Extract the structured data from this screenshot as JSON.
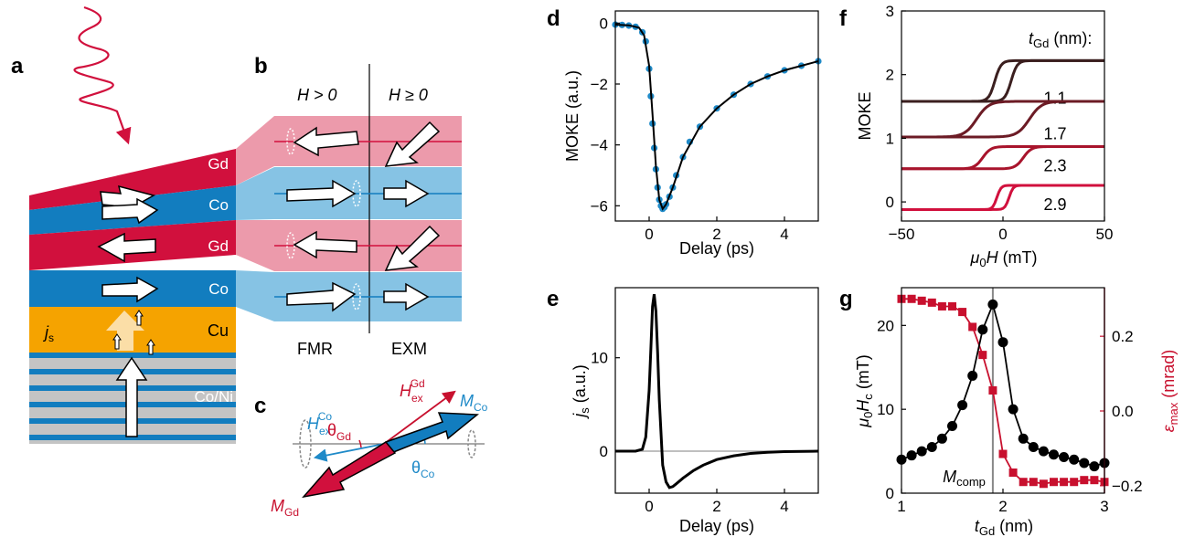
{
  "panels": {
    "a": "a",
    "b": "b",
    "c": "c",
    "d": "d",
    "e": "e",
    "f": "f",
    "g": "g"
  },
  "colors": {
    "gd": "#d1103d",
    "co": "#127dbf",
    "cu": "#f5a300",
    "gd_light": "#ec9aab",
    "co_light": "#86c3e4",
    "gray": "#c4c4c4",
    "blue": "#1f8ac8",
    "crimson": "#c8102e",
    "tick_h_hi": "#3b1f1f",
    "tick_h_mid": "#6c1b25"
  },
  "panel_a": {
    "layers": [
      "Gd",
      "Co",
      "Gd",
      "Co",
      "Cu",
      "Co/Ni"
    ],
    "js_main": "j",
    "js_sub": "s"
  },
  "panel_b": {
    "left_header": "H > 0",
    "right_header": "H ≥ 0",
    "left_footer": "FMR",
    "right_footer": "EXM"
  },
  "panel_c": {
    "hex_gd_main": "H",
    "hex_gd_sub": "ex",
    "hex_gd_sup": "Gd",
    "hex_co_main": "H",
    "hex_co_sub": "ex",
    "hex_co_sup": "Co",
    "m_co_main": "M",
    "m_co_sub": "Co",
    "m_gd_main": "M",
    "m_gd_sub": "Gd",
    "theta_gd_main": "θ",
    "theta_gd_sub": "Gd",
    "theta_co_main": "θ",
    "theta_co_sub": "Co"
  },
  "chart_data": [
    {
      "id": "d",
      "type": "scatter",
      "xlabel": "Delay (ps)",
      "ylabel": "MOKE (a.u.)",
      "xlim": [
        -1,
        5
      ],
      "ylim": [
        -6.5,
        0.4
      ],
      "xticks": [
        0,
        2,
        4
      ],
      "yticks": [
        0,
        -2,
        -4,
        -6
      ],
      "series": [
        {
          "kind": "points",
          "x": [
            -1,
            -0.8,
            -0.6,
            -0.4,
            -0.2,
            -0.1,
            0,
            0.05,
            0.1,
            0.15,
            0.2,
            0.25,
            0.3,
            0.35,
            0.4,
            0.45,
            0.5,
            0.6,
            0.7,
            0.8,
            1.0,
            1.2,
            1.5,
            2.0,
            2.5,
            3.0,
            3.5,
            4.0,
            4.5,
            5.0
          ],
          "y": [
            -0.05,
            -0.06,
            -0.08,
            -0.12,
            -0.3,
            -0.6,
            -1.5,
            -2.4,
            -3.3,
            -4.1,
            -4.8,
            -5.4,
            -5.8,
            -6.0,
            -6.1,
            -6.05,
            -5.95,
            -5.7,
            -5.4,
            -5.0,
            -4.4,
            -3.9,
            -3.4,
            -2.8,
            -2.35,
            -2.0,
            -1.75,
            -1.55,
            -1.4,
            -1.25
          ]
        },
        {
          "kind": "fit",
          "x": [
            -1,
            -0.6,
            -0.3,
            -0.15,
            0,
            0.1,
            0.2,
            0.3,
            0.4,
            0.5,
            0.7,
            1.0,
            1.5,
            2.0,
            2.5,
            3.0,
            3.5,
            4.0,
            4.5,
            5.0
          ],
          "y": [
            -0.05,
            -0.07,
            -0.15,
            -0.4,
            -1.4,
            -3.0,
            -4.7,
            -5.8,
            -6.1,
            -5.95,
            -5.4,
            -4.4,
            -3.4,
            -2.8,
            -2.35,
            -2.0,
            -1.75,
            -1.55,
            -1.4,
            -1.25
          ]
        }
      ]
    },
    {
      "id": "e",
      "type": "line",
      "xlabel": "Delay (ps)",
      "ylabel_main": "j",
      "ylabel_rest": "s",
      "ylabel_unit": " (a.u.)",
      "xlim": [
        -1,
        5
      ],
      "ylim": [
        -4.5,
        17.5
      ],
      "xticks": [
        0,
        2,
        4
      ],
      "yticks": [
        0,
        10
      ],
      "series": [
        {
          "x": [
            -1,
            -0.4,
            -0.2,
            -0.1,
            0,
            0.05,
            0.1,
            0.15,
            0.2,
            0.25,
            0.3,
            0.4,
            0.5,
            0.6,
            0.7,
            0.8,
            1.0,
            1.3,
            1.6,
            2.0,
            2.5,
            3.0,
            3.5,
            4.0,
            5.0
          ],
          "y": [
            0,
            0,
            0.2,
            1.5,
            6.5,
            11,
            15.5,
            16.8,
            15,
            10.5,
            5.5,
            -1.5,
            -3.3,
            -3.9,
            -3.8,
            -3.5,
            -2.9,
            -2.1,
            -1.5,
            -0.9,
            -0.5,
            -0.25,
            -0.12,
            -0.05,
            0
          ]
        }
      ]
    },
    {
      "id": "f",
      "type": "line",
      "title_main": "t",
      "title_sub": "Gd",
      "title_rest": " (nm):",
      "xlabel_mu": "μ",
      "xlabel_sub": "0",
      "xlabel_H": "H",
      "xlabel_unit": " (mT)",
      "ylabel": "MOKE",
      "xlim": [
        -50,
        50
      ],
      "ylim": [
        -0.3,
        3
      ],
      "xticks": [
        -50,
        0,
        50
      ],
      "yticks": [
        0,
        1,
        2,
        3
      ],
      "series": [
        {
          "name": "1.1",
          "color": "#3b1f1f",
          "low": 1.58,
          "high": 2.22,
          "hc": 4,
          "width": 3
        },
        {
          "name": "1.7",
          "color": "#6c1b25",
          "low": 1.02,
          "high": 1.58,
          "hc": 13,
          "width": 6
        },
        {
          "name": "2.3",
          "color": "#a8142c",
          "low": 0.52,
          "high": 0.87,
          "hc": 10,
          "width": 4
        },
        {
          "name": "2.9",
          "color": "#d1103d",
          "low": -0.12,
          "high": 0.26,
          "hc": 3,
          "width": 2
        }
      ]
    },
    {
      "id": "g",
      "type": "scatter",
      "xlabel_main": "t",
      "xlabel_sub": "Gd",
      "xlabel_unit": " (nm)",
      "ylabel_left_mu": "μ",
      "ylabel_left_sub0": "0",
      "ylabel_left_H": "H",
      "ylabel_left_subc": "c",
      "ylabel_left_unit": " (mT)",
      "ylabel_right_main": "ε",
      "ylabel_right_sub": "max",
      "ylabel_right_unit": " (mrad)",
      "annotation_main": "M",
      "annotation_sub": "comp",
      "xlim": [
        1,
        3
      ],
      "ylim_left": [
        0,
        24.5
      ],
      "ylim_right": [
        -0.22,
        0.33
      ],
      "xticks": [
        1,
        2,
        3
      ],
      "yticks_left": [
        0,
        10,
        20
      ],
      "yticks_right": [
        -0.2,
        0.0,
        0.2
      ],
      "ytick_right_labels": [
        "−0.2",
        "0.0",
        "0.2"
      ],
      "m_comp": 1.9,
      "series": [
        {
          "name": "Hc",
          "color": "#000000",
          "axis": "left",
          "x": [
            1.0,
            1.1,
            1.2,
            1.3,
            1.4,
            1.5,
            1.6,
            1.7,
            1.8,
            1.9,
            2.0,
            2.1,
            2.2,
            2.3,
            2.4,
            2.5,
            2.6,
            2.7,
            2.8,
            2.9,
            3.0
          ],
          "y": [
            4.0,
            4.5,
            5.0,
            5.5,
            6.5,
            8.0,
            10.5,
            14.0,
            19.5,
            22.5,
            18.0,
            10.0,
            6.5,
            5.5,
            5.0,
            4.6,
            4.3,
            4.0,
            3.6,
            3.2,
            3.6
          ]
        },
        {
          "name": "eps",
          "color": "#c8102e",
          "axis": "right",
          "x": [
            1.0,
            1.1,
            1.2,
            1.3,
            1.4,
            1.5,
            1.6,
            1.7,
            1.8,
            1.9,
            2.0,
            2.1,
            2.2,
            2.3,
            2.4,
            2.5,
            2.6,
            2.7,
            2.8,
            2.9,
            3.0
          ],
          "y": [
            0.3,
            0.3,
            0.295,
            0.29,
            0.28,
            0.28,
            0.265,
            0.225,
            0.15,
            0.055,
            -0.115,
            -0.165,
            -0.19,
            -0.19,
            -0.195,
            -0.19,
            -0.19,
            -0.19,
            -0.185,
            -0.185,
            -0.19
          ]
        }
      ]
    }
  ]
}
